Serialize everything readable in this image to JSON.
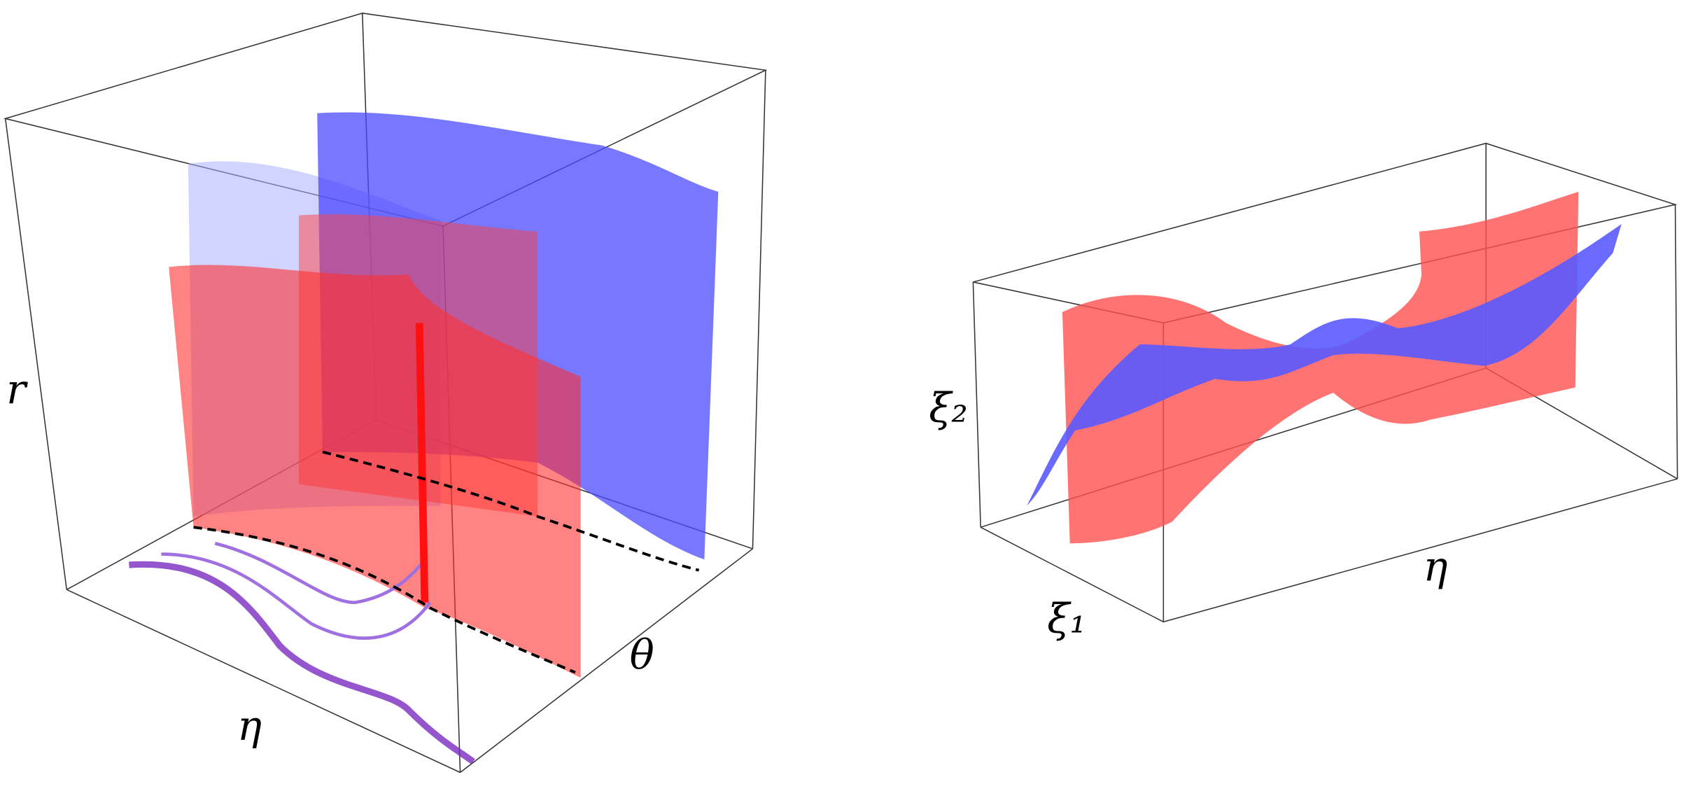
{
  "left_panel": {
    "axis_labels": [
      "r",
      "η",
      "θ"
    ]
  },
  "right_panel": {
    "axis_labels": [
      "ξ₂",
      "ξ₁",
      "η"
    ]
  }
}
